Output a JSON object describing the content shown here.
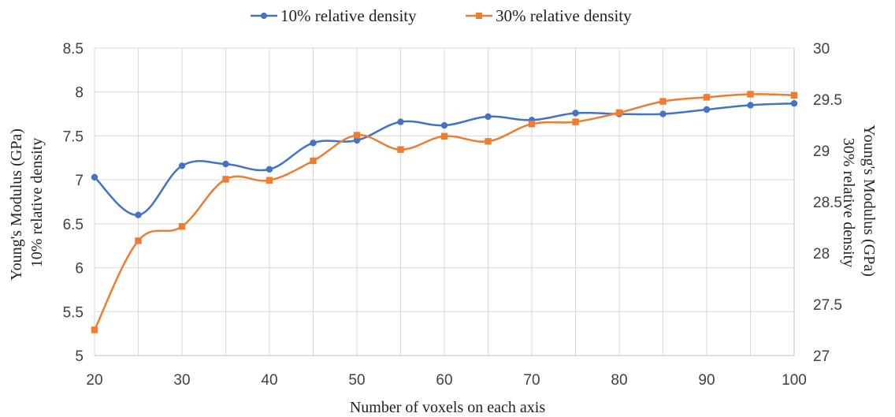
{
  "chart_data": {
    "type": "line",
    "title": "",
    "xlabel": "Number of voxels on each axis",
    "ylabel_left": [
      "Young's Modulus (GPa)",
      "10% relative density"
    ],
    "ylabel_right": [
      "Young's Modulus (GPa)",
      "30% relative density"
    ],
    "x": [
      20,
      25,
      30,
      35,
      40,
      45,
      50,
      55,
      60,
      65,
      70,
      75,
      80,
      85,
      90,
      95,
      100
    ],
    "x_ticks": [
      "20",
      "30",
      "40",
      "50",
      "60",
      "70",
      "80",
      "90",
      "100"
    ],
    "xlim": [
      20,
      100
    ],
    "ylim_left": [
      5,
      8.5
    ],
    "ylim_right": [
      27,
      30
    ],
    "y_ticks_left": [
      "5",
      "5.5",
      "6",
      "6.5",
      "7",
      "7.5",
      "8",
      "8.5"
    ],
    "y_ticks_right": [
      "27",
      "27.5",
      "28",
      "28.5",
      "29",
      "29.5",
      "30"
    ],
    "grid": true,
    "legend_position": "top-center",
    "series": [
      {
        "name": "10% relative density",
        "axis": "left",
        "color": "#4472C4",
        "marker": "circle",
        "values": [
          7.03,
          6.6,
          7.16,
          7.18,
          7.12,
          7.42,
          7.45,
          7.66,
          7.62,
          7.72,
          7.68,
          7.76,
          7.75,
          7.75,
          7.8,
          7.85,
          7.87
        ]
      },
      {
        "name": "30% relative density",
        "axis": "right",
        "color": "#ED7D31",
        "marker": "square",
        "values": [
          27.25,
          28.12,
          28.26,
          28.72,
          28.71,
          28.9,
          29.15,
          29.01,
          29.14,
          29.09,
          29.26,
          29.28,
          29.37,
          29.48,
          29.52,
          29.55,
          29.54
        ]
      }
    ]
  }
}
